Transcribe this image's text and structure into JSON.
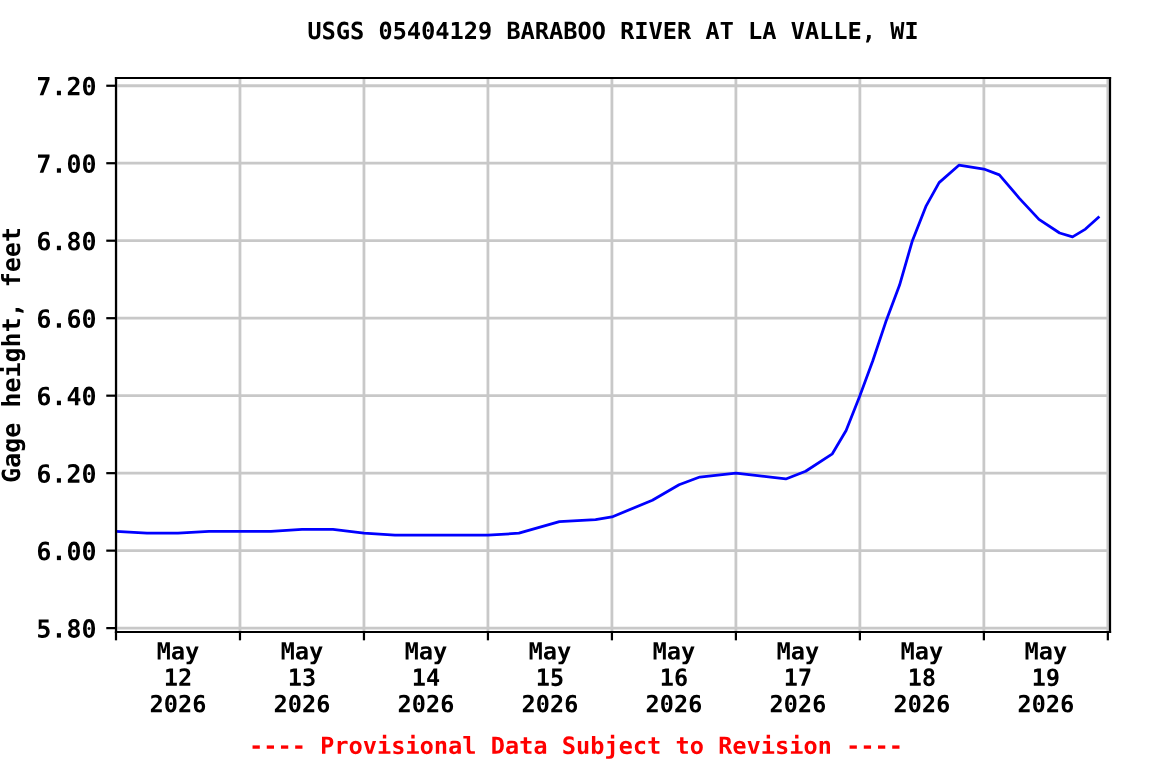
{
  "chart_data": {
    "type": "line",
    "title": "USGS 05404129 BARABOO RIVER AT LA VALLE, WI",
    "ylabel": "Gage height, feet",
    "x": [
      "2026-05-12T00:00",
      "2026-05-12T06:00",
      "2026-05-12T12:00",
      "2026-05-12T18:00",
      "2026-05-13T00:00",
      "2026-05-13T06:00",
      "2026-05-13T12:00",
      "2026-05-13T18:00",
      "2026-05-14T00:00",
      "2026-05-14T06:00",
      "2026-05-14T12:00",
      "2026-05-14T18:00",
      "2026-05-15T00:00",
      "2026-05-15T06:00",
      "2026-05-15T13:50",
      "2026-05-15T20:50",
      "2026-05-16T00:00",
      "2026-05-16T07:50",
      "2026-05-16T13:00",
      "2026-05-16T17:00",
      "2026-05-17T00:00",
      "2026-05-17T09:40",
      "2026-05-17T13:30",
      "2026-05-17T18:40",
      "2026-05-17T21:20",
      "2026-05-18T00:00",
      "2026-05-18T02:30",
      "2026-05-18T05:00",
      "2026-05-18T07:40",
      "2026-05-18T10:10",
      "2026-05-18T12:50",
      "2026-05-18T15:20",
      "2026-05-18T19:10",
      "2026-05-19T00:00",
      "2026-05-19T03:00",
      "2026-05-19T06:50",
      "2026-05-19T10:40",
      "2026-05-19T14:40",
      "2026-05-19T17:10",
      "2026-05-19T19:40",
      "2026-05-19T22:10"
    ],
    "series": [
      {
        "color": "#0000ff",
        "values": [
          6.05,
          6.045,
          6.045,
          6.05,
          6.05,
          6.05,
          6.055,
          6.055,
          6.045,
          6.04,
          6.04,
          6.04,
          6.04,
          6.045,
          6.075,
          6.08,
          6.087,
          6.13,
          6.17,
          6.19,
          6.2,
          6.185,
          6.205,
          6.25,
          6.31,
          6.4,
          6.49,
          6.59,
          6.685,
          6.8,
          6.89,
          6.95,
          6.995,
          6.985,
          6.97,
          6.91,
          6.855,
          6.82,
          6.81,
          6.83,
          6.86
        ]
      }
    ],
    "xlim": [
      "2026-05-12T00:00",
      "2026-05-20T00:25"
    ],
    "xticks": [
      {
        "value": "2026-05-12T00:00",
        "label": null
      },
      {
        "value": "2026-05-12T12:00",
        "label": "May\n12\n2026"
      },
      {
        "value": "2026-05-13T00:00",
        "label": null
      },
      {
        "value": "2026-05-13T12:00",
        "label": "May\n13\n2026"
      },
      {
        "value": "2026-05-14T00:00",
        "label": null
      },
      {
        "value": "2026-05-14T12:00",
        "label": "May\n14\n2026"
      },
      {
        "value": "2026-05-15T00:00",
        "label": null
      },
      {
        "value": "2026-05-15T12:00",
        "label": "May\n15\n2026"
      },
      {
        "value": "2026-05-16T00:00",
        "label": null
      },
      {
        "value": "2026-05-16T12:00",
        "label": "May\n16\n2026"
      },
      {
        "value": "2026-05-17T00:00",
        "label": null
      },
      {
        "value": "2026-05-17T12:00",
        "label": "May\n17\n2026"
      },
      {
        "value": "2026-05-18T00:00",
        "label": null
      },
      {
        "value": "2026-05-18T12:00",
        "label": "May\n18\n2026"
      },
      {
        "value": "2026-05-19T00:00",
        "label": null
      },
      {
        "value": "2026-05-19T12:00",
        "label": "May\n19\n2026"
      },
      {
        "value": "2026-05-20T00:00",
        "label": null
      }
    ],
    "ylim": [
      5.79,
      7.22
    ],
    "yticks": [
      {
        "value": 5.8,
        "label": "5.80"
      },
      {
        "value": 6.0,
        "label": "6.00"
      },
      {
        "value": 6.2,
        "label": "6.20"
      },
      {
        "value": 6.4,
        "label": "6.40"
      },
      {
        "value": 6.6,
        "label": "6.60"
      },
      {
        "value": 6.8,
        "label": "6.80"
      },
      {
        "value": 7.0,
        "label": "7.00"
      },
      {
        "value": 7.2,
        "label": "7.20"
      }
    ],
    "grid": true,
    "marker": "none",
    "line_style": "solid",
    "annotations": [
      "---- Provisional Data Subject to Revision ----"
    ]
  }
}
